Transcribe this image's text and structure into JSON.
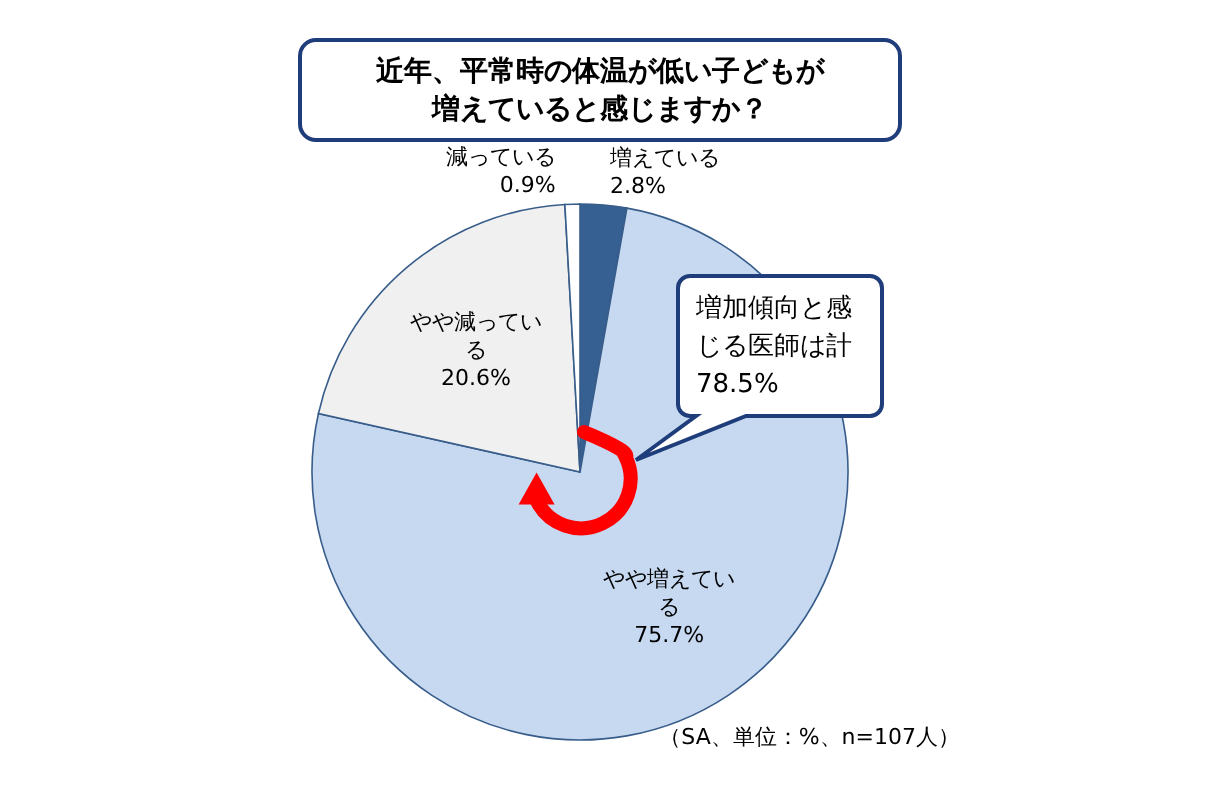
{
  "chart_data": {
    "type": "pie",
    "title": "近年、平常時の体温が低い子どもが増えていると感じますか？",
    "categories": [
      "増えている",
      "やや増えている",
      "やや減っている",
      "減っている"
    ],
    "values": [
      2.8,
      75.7,
      20.6,
      0.9
    ],
    "value_labels": [
      "2.8%",
      "75.7%",
      "20.6%",
      "0.9%"
    ],
    "colors": [
      "#376092",
      "#c6d9f1",
      "#f0f0f0",
      "#ffffff"
    ],
    "annotations": [
      "増加傾向と感じる医師は計78.5%",
      "（SA、単位：%、n=107人）"
    ]
  }
}
